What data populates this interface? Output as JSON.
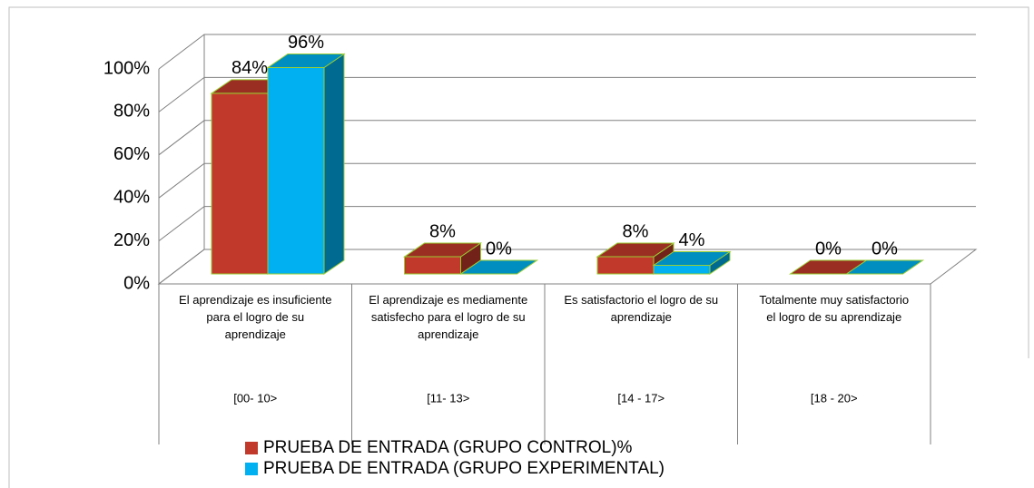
{
  "chart_data": {
    "type": "bar3d",
    "categories": [
      "El aprendizaje es insuficiente para el logro de su aprendizaje",
      "El aprendizaje es mediamente satisfecho para el logro de su aprendizaje",
      "Es satisfactorio el logro de su aprendizaje",
      "Totalmente muy satisfactorio el logro de su aprendizaje"
    ],
    "category_ranges": [
      "[00-  10>",
      "[11-  13>",
      "[14 - 17>",
      "[18 -  20>"
    ],
    "series": [
      {
        "name": "PRUEBA DE ENTRADA (GRUPO CONTROL)%",
        "color": "#c0392b",
        "values": [
          84,
          8,
          8,
          0
        ],
        "value_labels": [
          "84%",
          "8%",
          "8%",
          "0%"
        ]
      },
      {
        "name": "PRUEBA DE ENTRADA (GRUPO EXPERIMENTAL)",
        "color": "#00b0f0",
        "values": [
          96,
          0,
          4,
          0
        ],
        "value_labels": [
          "96%",
          "0%",
          "4%",
          "0%"
        ]
      }
    ],
    "ylim": [
      0,
      100
    ],
    "yticks": [
      {
        "value": 0,
        "label": "0%"
      },
      {
        "value": 20,
        "label": "20%"
      },
      {
        "value": 40,
        "label": "40%"
      },
      {
        "value": 60,
        "label": "60%"
      },
      {
        "value": 80,
        "label": "80%"
      },
      {
        "value": 100,
        "label": "100%"
      }
    ],
    "grid": true
  }
}
